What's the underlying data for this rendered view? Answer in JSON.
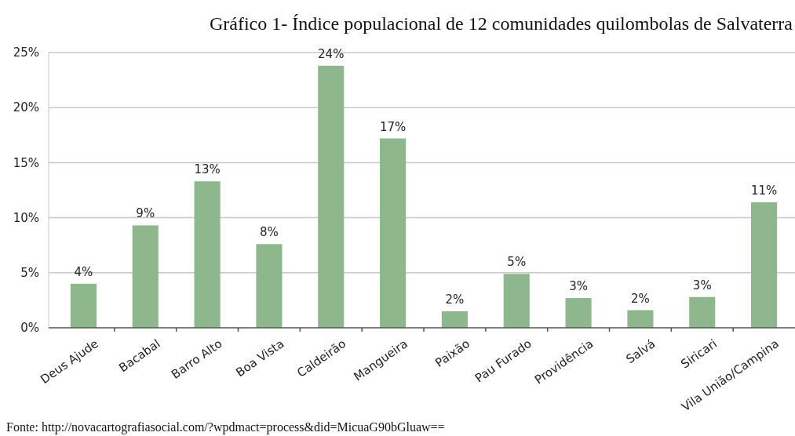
{
  "chart_data": {
    "type": "bar",
    "title": "Gráfico 1- Índice populacional de 12 comunidades quilombolas de Salvaterra",
    "categories": [
      "Deus Ajude",
      "Bacabal",
      "Barro Alto",
      "Boa Vista",
      "Caldeirão",
      "Mangueira",
      "Paixão",
      "Pau Furado",
      "Providência",
      "Salvá",
      "Siricari",
      "Vila União/Campina"
    ],
    "values": [
      4.0,
      9.3,
      13.3,
      7.6,
      23.8,
      17.2,
      1.5,
      4.9,
      2.7,
      1.6,
      2.8,
      11.4
    ],
    "value_labels": [
      "4%",
      "9%",
      "13%",
      "8%",
      "24%",
      "17%",
      "2%",
      "5%",
      "3%",
      "2%",
      "3%",
      "11%"
    ],
    "color": "#8fb78d",
    "ylim": [
      0,
      25
    ],
    "yticks": [
      {
        "value": 0,
        "label": "0%"
      },
      {
        "value": 5,
        "label": "5%"
      },
      {
        "value": 10,
        "label": "10%"
      },
      {
        "value": 15,
        "label": "15%"
      },
      {
        "value": 20,
        "label": "20%"
      },
      {
        "value": 25,
        "label": "25%"
      }
    ],
    "grid": "y",
    "annotations": [
      "Fonte: http://novacartografiasocial.com/?wpdmact=process&did=MicuaG90bGluaw=="
    ]
  }
}
